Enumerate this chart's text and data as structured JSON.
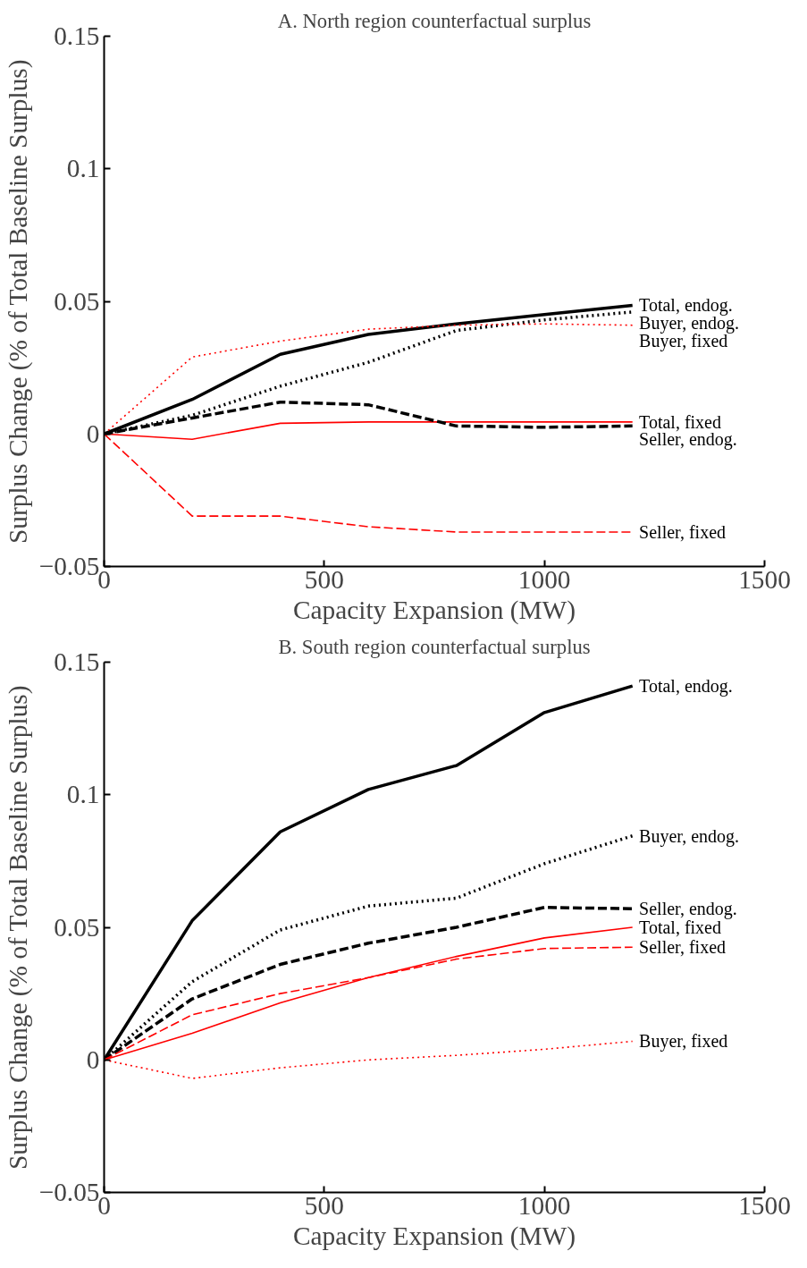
{
  "chart_data": [
    {
      "type": "line",
      "title": "A. North region counterfactual surplus",
      "xlabel": "Capacity Expansion (MW)",
      "ylabel": "Surplus Change (% of Total Baseline Surplus)",
      "x": [
        0,
        200,
        400,
        600,
        800,
        1000,
        1200
      ],
      "xlim": [
        0,
        1500
      ],
      "xticks": [
        0,
        500,
        1000,
        1500
      ],
      "ylim": [
        -0.05,
        0.15
      ],
      "yticks": [
        {
          "value": -0.05,
          "label": "−0.05"
        },
        0,
        0.05,
        0.1,
        0.15
      ],
      "grid": false,
      "legend": false,
      "marker": "none",
      "series": [
        {
          "name": "Total, endog.",
          "color": "#000000",
          "line_style": "solid",
          "values": [
            0,
            0.013,
            0.03,
            0.0375,
            0.0415,
            0.045,
            0.0485
          ]
        },
        {
          "name": "Buyer, endog.",
          "color": "#000000",
          "line_style": "dotted",
          "values": [
            0,
            0.007,
            0.018,
            0.027,
            0.039,
            0.043,
            0.046
          ]
        },
        {
          "name": "Buyer, fixed",
          "color": "#ff0000",
          "line_style": "dotted",
          "values": [
            0,
            0.029,
            0.035,
            0.0395,
            0.041,
            0.0415,
            0.041
          ]
        },
        {
          "name": "Total, fixed",
          "color": "#ff0000",
          "line_style": "solid",
          "values": [
            0,
            -0.002,
            0.004,
            0.0045,
            0.0045,
            0.0045,
            0.0045
          ]
        },
        {
          "name": "Seller, endog.",
          "color": "#000000",
          "line_style": "dashed",
          "values": [
            0,
            0.006,
            0.012,
            0.011,
            0.003,
            0.0025,
            0.003
          ]
        },
        {
          "name": "Seller, fixed",
          "color": "#ff0000",
          "line_style": "dashed",
          "values": [
            0,
            -0.031,
            -0.031,
            -0.035,
            -0.037,
            -0.037,
            -0.037
          ]
        }
      ]
    },
    {
      "type": "line",
      "title": "B. South region counterfactual surplus",
      "xlabel": "Capacity Expansion (MW)",
      "ylabel": "Surplus Change (% of Total Baseline Surplus)",
      "x": [
        0,
        200,
        400,
        600,
        800,
        1000,
        1200
      ],
      "xlim": [
        0,
        1500
      ],
      "xticks": [
        0,
        500,
        1000,
        1500
      ],
      "ylim": [
        -0.05,
        0.15
      ],
      "yticks": [
        {
          "value": -0.05,
          "label": "−0.05"
        },
        0,
        0.05,
        0.1,
        0.15
      ],
      "grid": false,
      "legend": false,
      "marker": "none",
      "series": [
        {
          "name": "Total, endog.",
          "color": "#000000",
          "line_style": "solid",
          "values": [
            0,
            0.0525,
            0.086,
            0.102,
            0.111,
            0.131,
            0.141
          ]
        },
        {
          "name": "Buyer, endog.",
          "color": "#000000",
          "line_style": "dotted",
          "values": [
            0,
            0.0295,
            0.049,
            0.058,
            0.061,
            0.074,
            0.0845
          ]
        },
        {
          "name": "Seller, endog.",
          "color": "#000000",
          "line_style": "dashed",
          "values": [
            0,
            0.023,
            0.036,
            0.044,
            0.05,
            0.0575,
            0.057
          ]
        },
        {
          "name": "Total, fixed",
          "color": "#ff0000",
          "line_style": "solid",
          "values": [
            0,
            0.01,
            0.0215,
            0.031,
            0.039,
            0.046,
            0.05
          ]
        },
        {
          "name": "Seller, fixed",
          "color": "#ff0000",
          "line_style": "dashed",
          "values": [
            0,
            0.017,
            0.025,
            0.031,
            0.038,
            0.042,
            0.0425
          ]
        },
        {
          "name": "Buyer, fixed",
          "color": "#ff0000",
          "line_style": "dotted",
          "values": [
            0,
            -0.007,
            -0.003,
            0,
            0.0017,
            0.004,
            0.007
          ]
        }
      ]
    }
  ]
}
